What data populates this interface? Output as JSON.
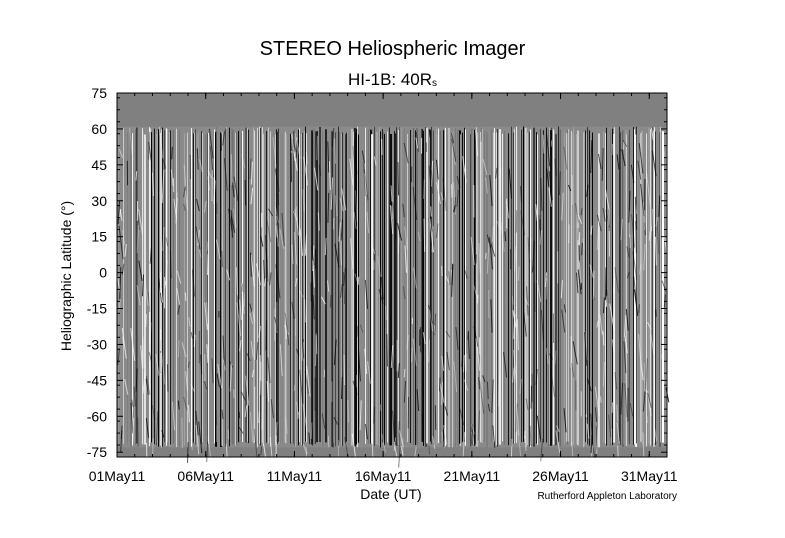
{
  "chart_data": {
    "type": "heatmap",
    "title": "STEREO Heliospheric Imager",
    "subtitle_main": "HI-1B: 40R",
    "subtitle_sub": "s",
    "xlabel": "Date (UT)",
    "ylabel": "Heliographic Latitude (°)",
    "x_ticks": [
      "01May11",
      "06May11",
      "11May11",
      "16May11",
      "21May11",
      "26May11",
      "31May11"
    ],
    "y_ticks": [
      75,
      60,
      45,
      30,
      15,
      0,
      -15,
      -30,
      -45,
      -60,
      -75
    ],
    "ylim": [
      -77,
      75
    ],
    "data_coverage_lat": [
      -73,
      61
    ],
    "colormap": "grayscale",
    "background_color": "#808080",
    "credit": "Rutherford Appleton Laboratory"
  }
}
